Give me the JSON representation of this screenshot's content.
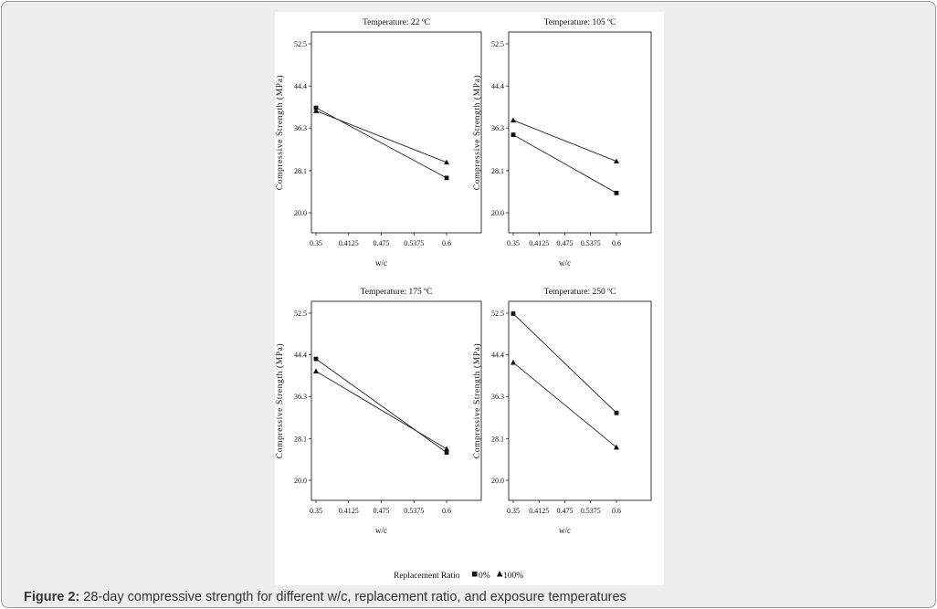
{
  "figure": {
    "label": "Figure 2:",
    "caption": "28-day compressive strength for different w/c, replacement ratio, and exposure temperatures"
  },
  "legend": {
    "title": "Replacement Ratio",
    "entries": [
      {
        "marker": "square",
        "label": "0%"
      },
      {
        "marker": "triangle",
        "label": "100%"
      }
    ]
  },
  "chart_data": [
    {
      "type": "line",
      "title": "Temperature: 22 ºC",
      "xlabel": "w/c",
      "ylabel": "Compressive Strength (MPa)",
      "x_ticks": [
        "0.35",
        "0.4125",
        "0.475",
        "0.5375",
        "0.6"
      ],
      "y_ticks": [
        "20.0",
        "28.1",
        "36.3",
        "44.4",
        "52.5"
      ],
      "xlim": [
        0.35,
        0.6
      ],
      "ylim": [
        20.0,
        52.5
      ],
      "x": [
        0.35,
        0.6
      ],
      "series": [
        {
          "name": "0%",
          "marker": "square",
          "values": [
            40.2,
            26.7
          ]
        },
        {
          "name": "100%",
          "marker": "triangle",
          "values": [
            39.6,
            29.7
          ]
        }
      ]
    },
    {
      "type": "line",
      "title": "Temperature: 105 ºC",
      "xlabel": "w/c",
      "ylabel": "Compressive Strength (MPa)",
      "x_ticks": [
        "0.35",
        "0.4125",
        "0.475",
        "0.5375",
        "0.6"
      ],
      "y_ticks": [
        "20.0",
        "28.1",
        "36.3",
        "44.4",
        "52.5"
      ],
      "xlim": [
        0.35,
        0.6
      ],
      "ylim": [
        20.0,
        52.5
      ],
      "x": [
        0.35,
        0.6
      ],
      "series": [
        {
          "name": "0%",
          "marker": "square",
          "values": [
            35.0,
            23.8
          ]
        },
        {
          "name": "100%",
          "marker": "triangle",
          "values": [
            37.8,
            29.9
          ]
        }
      ]
    },
    {
      "type": "line",
      "title": "Temperature: 175 ºC",
      "xlabel": "w/c",
      "ylabel": "Compressive Strength (MPa)",
      "x_ticks": [
        "0.35",
        "0.4125",
        "0.475",
        "0.5375",
        "0.6"
      ],
      "y_ticks": [
        "20.0",
        "28.1",
        "36.3",
        "44.4",
        "52.5"
      ],
      "xlim": [
        0.35,
        0.6
      ],
      "ylim": [
        20.0,
        52.5
      ],
      "x": [
        0.35,
        0.6
      ],
      "series": [
        {
          "name": "0%",
          "marker": "square",
          "values": [
            43.6,
            25.4
          ]
        },
        {
          "name": "100%",
          "marker": "triangle",
          "values": [
            41.2,
            26.1
          ]
        }
      ]
    },
    {
      "type": "line",
      "title": "Temperature: 250 ºC",
      "xlabel": "w/c",
      "ylabel": "Compressive Strength (MPa)",
      "x_ticks": [
        "0.35",
        "0.4125",
        "0.475",
        "0.5375",
        "0.6"
      ],
      "y_ticks": [
        "20.0",
        "28.1",
        "36.3",
        "44.4",
        "52.5"
      ],
      "xlim": [
        0.35,
        0.6
      ],
      "ylim": [
        20.0,
        52.5
      ],
      "x": [
        0.35,
        0.6
      ],
      "series": [
        {
          "name": "0%",
          "marker": "square",
          "values": [
            52.4,
            33.1
          ]
        },
        {
          "name": "100%",
          "marker": "triangle",
          "values": [
            42.9,
            26.4
          ]
        }
      ]
    }
  ]
}
